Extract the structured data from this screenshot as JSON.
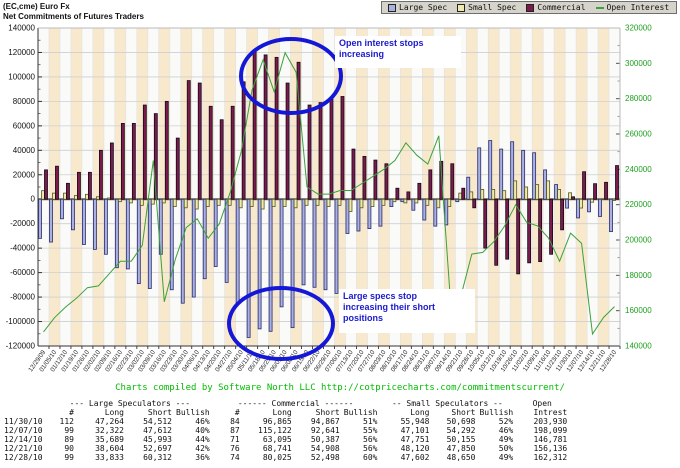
{
  "title": {
    "line1": "(EC,cme) Euro Fx",
    "line2": "Net Commitments of Futures Traders"
  },
  "legend": [
    {
      "label": "Large Spec",
      "color": "#a9b1e1",
      "type": "square"
    },
    {
      "label": "Small Spec",
      "color": "#efe9b0",
      "type": "square"
    },
    {
      "label": "Commercial",
      "color": "#7b1b4d",
      "type": "square"
    },
    {
      "label": "Open Interest",
      "color": "#3ba13b",
      "type": "dash"
    }
  ],
  "annotations": [
    {
      "name": "open-interest-note",
      "lines": [
        "Open interest stops",
        "increasing"
      ]
    },
    {
      "name": "large-specs-note",
      "lines": [
        "Large specs stop",
        "increasing their short",
        "positions"
      ]
    }
  ],
  "footer_link": "Charts compiled by Software North LLC  http://cotpricecharts.com/commitmentscurrent/",
  "chart_data": {
    "type": "bar",
    "title": "Net Commitments of Futures Traders (EC,cme) Euro Fx",
    "x": [
      "12/29/09",
      "01/05/10",
      "01/12/10",
      "01/19/10",
      "01/26/10",
      "02/02/10",
      "02/09/10",
      "02/16/10",
      "02/23/10",
      "03/02/10",
      "03/09/10",
      "03/16/10",
      "03/23/10",
      "03/30/10",
      "04/06/10",
      "04/13/10",
      "04/20/10",
      "04/27/10",
      "05/04/10",
      "05/11/10",
      "05/18/10",
      "05/25/10",
      "06/01/10",
      "06/08/10",
      "06/15/10",
      "06/22/10",
      "06/29/10",
      "07/06/10",
      "07/13/10",
      "07/20/10",
      "07/27/10",
      "08/03/10",
      "08/10/10",
      "08/17/10",
      "08/24/10",
      "08/31/10",
      "09/07/10",
      "09/14/10",
      "09/21/10",
      "09/28/10",
      "10/05/10",
      "10/12/10",
      "10/19/10",
      "10/26/10",
      "11/02/10",
      "11/09/10",
      "11/16/10",
      "11/23/10",
      "11/30/10",
      "12/07/10",
      "12/14/10",
      "12/21/10",
      "12/28/10"
    ],
    "left_axis": {
      "max": 140000,
      "min": -120000,
      "step": 20000
    },
    "right_axis": {
      "max": 320000,
      "min": 140000,
      "step": 20000
    },
    "series": [
      {
        "name": "Large Spec",
        "type": "bar",
        "axis": "left",
        "color": "#a9b1e1",
        "stroke": "#2a2a6e",
        "values": [
          -32000,
          -35000,
          -16000,
          -25000,
          -37000,
          -41000,
          -45000,
          -56000,
          -57000,
          -69000,
          -73000,
          -45000,
          -74000,
          -85000,
          -80000,
          -65000,
          -55000,
          -68000,
          -85000,
          -113000,
          -106000,
          -108000,
          -88000,
          -105000,
          -70000,
          -72000,
          -74000,
          -77000,
          -28000,
          -26000,
          -24000,
          -22000,
          -6000,
          -2000,
          -9000,
          -17000,
          -22000,
          -21000,
          -2000,
          18000,
          42000,
          48000,
          41000,
          47000,
          40000,
          38000,
          24000,
          12000,
          -7248,
          -15290,
          -10304,
          -14093,
          -26479
        ]
      },
      {
        "name": "Small Spec",
        "type": "bar",
        "axis": "left",
        "color": "#efe9b0",
        "stroke": "#55551f",
        "values": [
          7000,
          5000,
          5000,
          3000,
          4000,
          2000,
          1000,
          -2000,
          -3000,
          -5000,
          -4000,
          -3000,
          -6000,
          -7000,
          -8000,
          -6000,
          -5000,
          -5000,
          -7000,
          -6000,
          -8000,
          -6000,
          -6000,
          -7000,
          -5000,
          -5000,
          -6000,
          -5000,
          -10000,
          -7000,
          -6000,
          -5000,
          -2000,
          -3000,
          -3000,
          -5000,
          -7000,
          -6000,
          5000,
          6000,
          8000,
          8000,
          7000,
          15000,
          10000,
          12000,
          15000,
          8000,
          5250,
          -7191,
          -2404,
          270,
          -1048
        ]
      },
      {
        "name": "Commercial",
        "type": "bar",
        "axis": "left",
        "color": "#7b1b4d",
        "stroke": "#140814",
        "values": [
          24000,
          27000,
          13000,
          22000,
          22000,
          40000,
          46000,
          62000,
          62000,
          77000,
          70000,
          80000,
          50000,
          97000,
          95000,
          76000,
          65000,
          76000,
          96000,
          122000,
          118000,
          116000,
          95000,
          112000,
          77000,
          79000,
          82000,
          84000,
          41000,
          35000,
          32000,
          29000,
          9000,
          6000,
          13000,
          24000,
          31000,
          29000,
          9000,
          -7000,
          -40000,
          -54000,
          -49000,
          -61000,
          -52000,
          -51000,
          -45000,
          -25000,
          1998,
          22481,
          12708,
          13833,
          27527
        ]
      },
      {
        "name": "Open Interest",
        "type": "line",
        "axis": "right",
        "color": "#3ba13b",
        "values": [
          148000,
          156000,
          162000,
          167000,
          173000,
          174000,
          181000,
          188000,
          188000,
          197000,
          245000,
          165000,
          189000,
          207000,
          212000,
          201000,
          209000,
          227000,
          250000,
          285000,
          302000,
          284000,
          306000,
          295000,
          230000,
          226000,
          226000,
          228000,
          228000,
          232000,
          236000,
          240000,
          245000,
          255000,
          248000,
          243000,
          259000,
          171000,
          168000,
          192000,
          193000,
          199000,
          208000,
          220000,
          210000,
          208000,
          201000,
          188000,
          203930,
          198099,
          146781,
          156136,
          162312
        ]
      }
    ],
    "style": {
      "stripe_cream": "#f9e9cc",
      "stripe_light": "#fafaf8",
      "grid_color": "#cfcfcf",
      "zero_line_color": "#6b6b4e",
      "right_label_color": "#1da11d"
    }
  },
  "table": {
    "group_headers": [
      "--- Large Speculators ---",
      "------ Commercial ------",
      "-- Small Speculators --",
      "Open"
    ],
    "col_headers": [
      "",
      "#",
      "Long",
      "Short",
      "Bullish",
      "#",
      "Long",
      "Short",
      "Bullish",
      "Long",
      "Short",
      "Bullish",
      "Intrest"
    ],
    "rows": [
      [
        "11/30/10",
        "112",
        "47,264",
        "54,512",
        "46%",
        "84",
        "96,865",
        "94,867",
        "51%",
        "55,948",
        "50,698",
        "52%",
        "203,930"
      ],
      [
        "12/07/10",
        "99",
        "32,322",
        "47,612",
        "40%",
        "87",
        "115,122",
        "92,641",
        "55%",
        "47,101",
        "54,292",
        "46%",
        "198,099"
      ],
      [
        "12/14/10",
        "89",
        "35,689",
        "45,993",
        "44%",
        "71",
        "63,095",
        "50,387",
        "56%",
        "47,751",
        "50,155",
        "49%",
        "146,781"
      ],
      [
        "12/21/10",
        "90",
        "38,604",
        "52,697",
        "42%",
        "76",
        "68,741",
        "54,908",
        "56%",
        "48,120",
        "47,850",
        "50%",
        "156,136"
      ],
      [
        "12/28/10",
        "99",
        "33,833",
        "60,312",
        "36%",
        "74",
        "80,025",
        "52,498",
        "60%",
        "47,602",
        "48,650",
        "49%",
        "162,312"
      ]
    ]
  }
}
